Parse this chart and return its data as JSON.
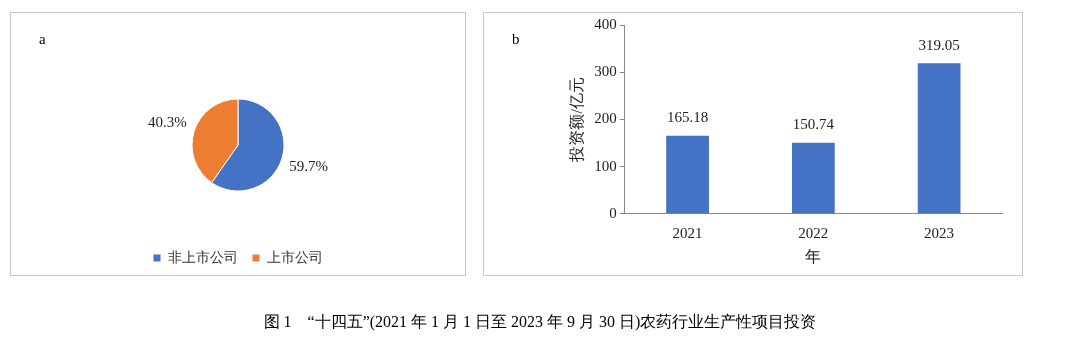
{
  "chart_data": [
    {
      "type": "pie",
      "annotations": [
        "a"
      ],
      "categories": [
        "非上市公司",
        "上市公司"
      ],
      "values": [
        59.7,
        40.3
      ],
      "colors": [
        "#4472c4",
        "#ed7d31"
      ],
      "value_labels": [
        "59.7%",
        "40.3%"
      ],
      "legend": "bottom"
    },
    {
      "type": "bar",
      "annotations": [
        "b",
        "图 1　“十四五”(2021 年 1 月 1 日至 2023 年 9 月 30 日)农药行业生产性项目投资"
      ],
      "categories": [
        "2021",
        "2022",
        "2023"
      ],
      "values": [
        165.18,
        150.74,
        319.05
      ],
      "color": "#4472c4",
      "xlabel": "年",
      "ylabel": "投资额/亿元",
      "ylim": [
        0,
        400
      ],
      "yticks": [
        0,
        100,
        200,
        300,
        400
      ],
      "data_labels": true,
      "grid": false,
      "legend": false
    }
  ]
}
